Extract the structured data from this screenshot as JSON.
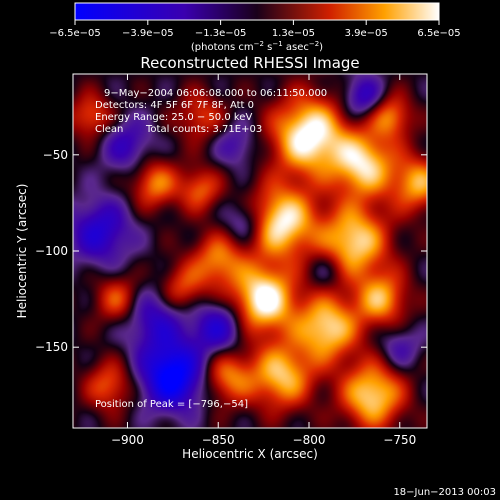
{
  "chart_data": {
    "type": "heatmap",
    "title": "Reconstructed RHESSI Image",
    "xlabel": "Heliocentric X (arcsec)",
    "ylabel": "Heliocentric Y (arcsec)",
    "xlim": [
      -930,
      -735
    ],
    "ylim": [
      -192,
      -8
    ],
    "x_ticks": [
      -900,
      -850,
      -800,
      -750
    ],
    "x_tick_labels": [
      "−900",
      "−850",
      "−800",
      "−750"
    ],
    "y_ticks": [
      -50,
      -100,
      -150
    ],
    "y_tick_labels": [
      "−50",
      "−100",
      "−150"
    ],
    "colorbar": {
      "min": -6.5e-05,
      "max": 6.5e-05,
      "ticks": [
        -6.5e-05,
        -3.9e-05,
        -1.3e-05,
        1.3e-05,
        3.9e-05,
        6.5e-05
      ],
      "tick_labels": [
        "−6.5e−05",
        "−3.9e−05",
        "−1.3e−05",
        "1.3e−05",
        "3.9e−05",
        "6.5e−05"
      ],
      "unit_main": "(photons cm",
      "unit_exp1": "−2",
      "unit_mid": " s",
      "unit_exp2": "−1",
      "unit_end": " asec",
      "unit_exp3": "−2",
      "unit_close": ")"
    },
    "peak": {
      "x": -796,
      "y": -54
    },
    "annotations": {
      "line1": "9−May−2004 06:06:08.000 to 06:11:50.000",
      "line2": "Detectors: 4F 5F 6F 7F 8F, Att 0",
      "line3": "Energy Range: 25.0 − 50.0 keV",
      "line4_a": "Clean",
      "line4_b": "Total counts: 3.71E+03",
      "peak_label": "Position of Peak = [−796,−54]"
    },
    "blobs": [
      {
        "x": -800,
        "y": -40,
        "v": 1.2,
        "s": 14
      },
      {
        "x": -770,
        "y": -55,
        "v": 1.0,
        "s": 12
      },
      {
        "x": -815,
        "y": -85,
        "v": 1.1,
        "s": 13
      },
      {
        "x": -775,
        "y": -95,
        "v": 1.0,
        "s": 13
      },
      {
        "x": -825,
        "y": -125,
        "v": 1.2,
        "s": 12
      },
      {
        "x": -790,
        "y": -140,
        "v": 1.0,
        "s": 12
      },
      {
        "x": -760,
        "y": -125,
        "v": 0.8,
        "s": 10
      },
      {
        "x": -815,
        "y": -165,
        "v": 0.9,
        "s": 12
      },
      {
        "x": -765,
        "y": -175,
        "v": 1.0,
        "s": 12
      },
      {
        "x": -845,
        "y": -165,
        "v": 0.7,
        "s": 10
      },
      {
        "x": -850,
        "y": -105,
        "v": 0.7,
        "s": 10
      },
      {
        "x": -885,
        "y": -65,
        "v": 0.7,
        "s": 9
      },
      {
        "x": -860,
        "y": -68,
        "v": 0.6,
        "s": 8
      },
      {
        "x": -870,
        "y": -120,
        "v": 0.6,
        "s": 9
      },
      {
        "x": -905,
        "y": -125,
        "v": 0.6,
        "s": 9
      },
      {
        "x": -910,
        "y": -170,
        "v": 0.6,
        "s": 9
      },
      {
        "x": -860,
        "y": -30,
        "v": 0.5,
        "s": 9
      },
      {
        "x": -920,
        "y": -30,
        "v": 0.6,
        "s": 8
      },
      {
        "x": -755,
        "y": -30,
        "v": 0.7,
        "s": 8
      },
      {
        "x": -740,
        "y": -65,
        "v": 0.8,
        "s": 10
      },
      {
        "x": -915,
        "y": -90,
        "v": -0.7,
        "s": 12
      },
      {
        "x": -875,
        "y": -165,
        "v": -1.2,
        "s": 12
      },
      {
        "x": -885,
        "y": -135,
        "v": -0.6,
        "s": 12
      },
      {
        "x": -850,
        "y": -140,
        "v": -0.7,
        "s": 10
      },
      {
        "x": -900,
        "y": -45,
        "v": -0.5,
        "s": 10
      },
      {
        "x": -835,
        "y": -85,
        "v": -0.5,
        "s": 8
      },
      {
        "x": -840,
        "y": -45,
        "v": -0.4,
        "s": 8
      },
      {
        "x": -770,
        "y": -20,
        "v": -0.6,
        "s": 8
      },
      {
        "x": -750,
        "y": -150,
        "v": -0.4,
        "s": 8
      },
      {
        "x": -790,
        "y": -110,
        "v": -0.3,
        "s": 7
      }
    ]
  },
  "footer": {
    "timestamp": "18−Jun−2013 00:03"
  }
}
